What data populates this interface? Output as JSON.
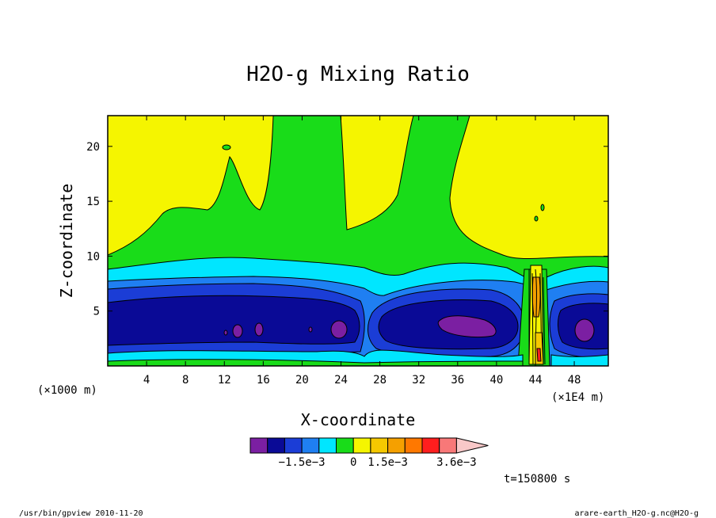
{
  "chart_data": {
    "type": "heatmap",
    "title": "H2O-g Mixing Ratio",
    "xlabel": "X-coordinate",
    "ylabel": "Z-coordinate",
    "x_unit": "(×1000 m)",
    "x_factor": "(×1E4 m)",
    "xlim": [
      0,
      51.5
    ],
    "ylim": [
      0,
      22.8
    ],
    "x_ticks": [
      4,
      8,
      12,
      16,
      20,
      24,
      28,
      32,
      36,
      40,
      44,
      48
    ],
    "y_ticks": [
      5,
      10,
      15,
      20
    ],
    "grid": false,
    "colorbar": {
      "colors": [
        "#7b1fa2",
        "#0a0a96",
        "#1b3dd6",
        "#1f7ff2",
        "#00e6ff",
        "#19dc19",
        "#f5f500",
        "#f5c800",
        "#f5a000",
        "#ff7800",
        "#ff1e1e",
        "#f87878",
        "#f8c8c8"
      ],
      "tick_labels": [
        {
          "label": "−1.5e−3",
          "index": 3
        },
        {
          "label": "0",
          "index": 6
        },
        {
          "label": "1.5e−3",
          "index": 8
        },
        {
          "label": "3.6e−3",
          "index": 12
        }
      ]
    },
    "time_label": "t=150800 s"
  },
  "footer": {
    "left": "/usr/bin/gpview   2010-11-20",
    "right": "arare-earth_H2O-g.nc@H2O-g"
  }
}
